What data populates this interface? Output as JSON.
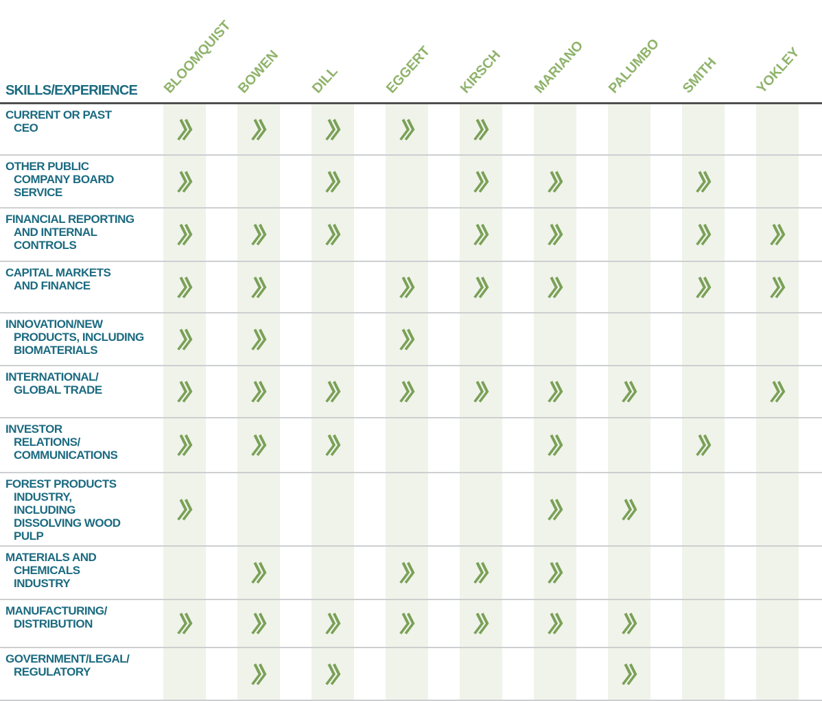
{
  "colors": {
    "label_teal": "#1B6A80",
    "name_green": "#8FB36B",
    "check_green": "#7AA158",
    "stripe": "#F0F3EA",
    "row_border": "#CCCED0",
    "header_border": "#4E4E4E"
  },
  "chart_data": {
    "type": "table",
    "row_header_label": "SKILLS/EXPERIENCE",
    "columns": [
      "BLOOMQUIST",
      "BOWEN",
      "DILL",
      "EGGERT",
      "KIRSCH",
      "MARIANO",
      "PALUMBO",
      "SMITH",
      "YOKLEY"
    ],
    "check_symbol": "double-chevron-right",
    "legend_position": "none",
    "grid": "column-stripes",
    "rows": [
      {
        "skill": "CURRENT OR PAST CEO",
        "label_lines": [
          "CURRENT OR PAST",
          "CEO"
        ],
        "checks": [
          1,
          1,
          1,
          1,
          1,
          0,
          0,
          0,
          0
        ]
      },
      {
        "skill": "OTHER PUBLIC COMPANY BOARD SERVICE",
        "label_lines": [
          "OTHER PUBLIC",
          "COMPANY BOARD",
          "SERVICE"
        ],
        "checks": [
          1,
          0,
          1,
          0,
          1,
          1,
          0,
          1,
          0
        ]
      },
      {
        "skill": "FINANCIAL REPORTING AND INTERNAL CONTROLS",
        "label_lines": [
          "FINANCIAL REPORTING",
          "AND INTERNAL",
          "CONTROLS"
        ],
        "checks": [
          1,
          1,
          1,
          0,
          1,
          1,
          0,
          1,
          1
        ]
      },
      {
        "skill": "CAPITAL MARKETS AND FINANCE",
        "label_lines": [
          "CAPITAL MARKETS",
          "AND FINANCE"
        ],
        "checks": [
          1,
          1,
          0,
          1,
          1,
          1,
          0,
          1,
          1
        ]
      },
      {
        "skill": "INNOVATION/NEW PRODUCTS, INCLUDING BIOMATERIALS",
        "label_lines": [
          "INNOVATION/NEW",
          "PRODUCTS, INCLUDING",
          "BIOMATERIALS"
        ],
        "checks": [
          1,
          1,
          0,
          1,
          0,
          0,
          0,
          0,
          0
        ]
      },
      {
        "skill": "INTERNATIONAL/GLOBAL TRADE",
        "label_lines": [
          "INTERNATIONAL/",
          "GLOBAL TRADE"
        ],
        "checks": [
          1,
          1,
          1,
          1,
          1,
          1,
          1,
          0,
          1
        ]
      },
      {
        "skill": "INVESTOR RELATIONS/COMMUNICATIONS",
        "label_lines": [
          "INVESTOR",
          "RELATIONS/",
          "COMMUNICATIONS"
        ],
        "checks": [
          1,
          1,
          1,
          0,
          0,
          1,
          0,
          1,
          0
        ]
      },
      {
        "skill": "FOREST PRODUCTS INDUSTRY, INCLUDING DISSOLVING WOOD PULP",
        "label_lines": [
          "FOREST PRODUCTS",
          "INDUSTRY,",
          "INCLUDING",
          "DISSOLVING WOOD",
          "PULP"
        ],
        "checks": [
          1,
          0,
          0,
          0,
          0,
          1,
          1,
          0,
          0
        ]
      },
      {
        "skill": "MATERIALS AND CHEMICALS INDUSTRY",
        "label_lines": [
          "MATERIALS AND",
          "CHEMICALS",
          "INDUSTRY"
        ],
        "checks": [
          0,
          1,
          0,
          1,
          1,
          1,
          0,
          0,
          0
        ]
      },
      {
        "skill": "MANUFACTURING/DISTRIBUTION",
        "label_lines": [
          "MANUFACTURING/",
          "DISTRIBUTION"
        ],
        "checks": [
          1,
          1,
          1,
          1,
          1,
          1,
          1,
          0,
          0
        ]
      },
      {
        "skill": "GOVERNMENT/LEGAL/REGULATORY",
        "label_lines": [
          "GOVERNMENT/LEGAL/",
          "REGULATORY"
        ],
        "checks": [
          0,
          1,
          1,
          0,
          0,
          0,
          1,
          0,
          0
        ]
      }
    ]
  }
}
